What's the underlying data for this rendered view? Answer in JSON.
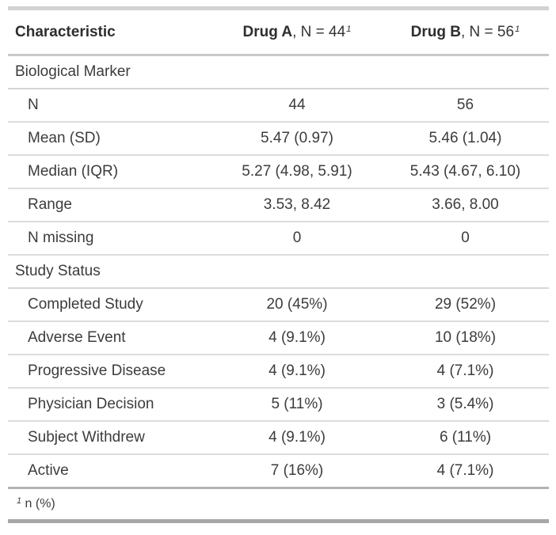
{
  "table": {
    "columns": [
      {
        "label": "Characteristic"
      },
      {
        "label_bold": "Drug A",
        "label_rest": ", N = 44",
        "footnote_mark": "1"
      },
      {
        "label_bold": "Drug B",
        "label_rest": ", N = 56",
        "footnote_mark": "1"
      }
    ],
    "groups": [
      {
        "label": "Biological Marker",
        "rows": [
          {
            "label": "N",
            "drug_a": "44",
            "drug_b": "56"
          },
          {
            "label": "Mean (SD)",
            "drug_a": "5.47 (0.97)",
            "drug_b": "5.46 (1.04)"
          },
          {
            "label": "Median (IQR)",
            "drug_a": "5.27 (4.98, 5.91)",
            "drug_b": "5.43 (4.67, 6.10)"
          },
          {
            "label": "Range",
            "drug_a": "3.53, 8.42",
            "drug_b": "3.66, 8.00"
          },
          {
            "label": "N missing",
            "drug_a": "0",
            "drug_b": "0"
          }
        ]
      },
      {
        "label": "Study Status",
        "rows": [
          {
            "label": "Completed Study",
            "drug_a": "20 (45%)",
            "drug_b": "29 (52%)"
          },
          {
            "label": "Adverse Event",
            "drug_a": "4 (9.1%)",
            "drug_b": "10 (18%)"
          },
          {
            "label": "Progressive Disease",
            "drug_a": "4 (9.1%)",
            "drug_b": "4 (7.1%)"
          },
          {
            "label": "Physician Decision",
            "drug_a": "5 (11%)",
            "drug_b": "3 (5.4%)"
          },
          {
            "label": "Subject Withdrew",
            "drug_a": "4 (9.1%)",
            "drug_b": "6 (11%)"
          },
          {
            "label": "Active",
            "drug_a": "7 (16%)",
            "drug_b": "4 (7.1%)"
          }
        ]
      }
    ],
    "footnote": {
      "mark": "1",
      "text": "n (%)"
    }
  },
  "chart_data": {
    "type": "table",
    "title": "",
    "columns": [
      "Characteristic",
      "Drug A, N = 44",
      "Drug B, N = 56"
    ],
    "rows": [
      [
        "Biological Marker",
        "",
        ""
      ],
      [
        "N",
        "44",
        "56"
      ],
      [
        "Mean (SD)",
        "5.47 (0.97)",
        "5.46 (1.04)"
      ],
      [
        "Median (IQR)",
        "5.27 (4.98, 5.91)",
        "5.43 (4.67, 6.10)"
      ],
      [
        "Range",
        "3.53, 8.42",
        "3.66, 8.00"
      ],
      [
        "N missing",
        "0",
        "0"
      ],
      [
        "Study Status",
        "",
        ""
      ],
      [
        "Completed Study",
        "20 (45%)",
        "29 (52%)"
      ],
      [
        "Adverse Event",
        "4 (9.1%)",
        "10 (18%)"
      ],
      [
        "Progressive Disease",
        "4 (9.1%)",
        "4 (7.1%)"
      ],
      [
        "Physician Decision",
        "5 (11%)",
        "3 (5.4%)"
      ],
      [
        "Subject Withdrew",
        "4 (9.1%)",
        "6 (11%)"
      ],
      [
        "Active",
        "7 (16%)",
        "4 (7.1%)"
      ]
    ],
    "footnote": "1 n (%)"
  },
  "colors": {
    "background": "#ffffff",
    "text_body": "#3c3c3c",
    "text_header_bold": "#2e2e2e",
    "border_top": "#d2d2d2",
    "border_header": "#c9c9c9",
    "border_rows": "#dcdcdc",
    "border_footnote": "#b3b3b3",
    "border_bottom": "#a7a7a7"
  }
}
